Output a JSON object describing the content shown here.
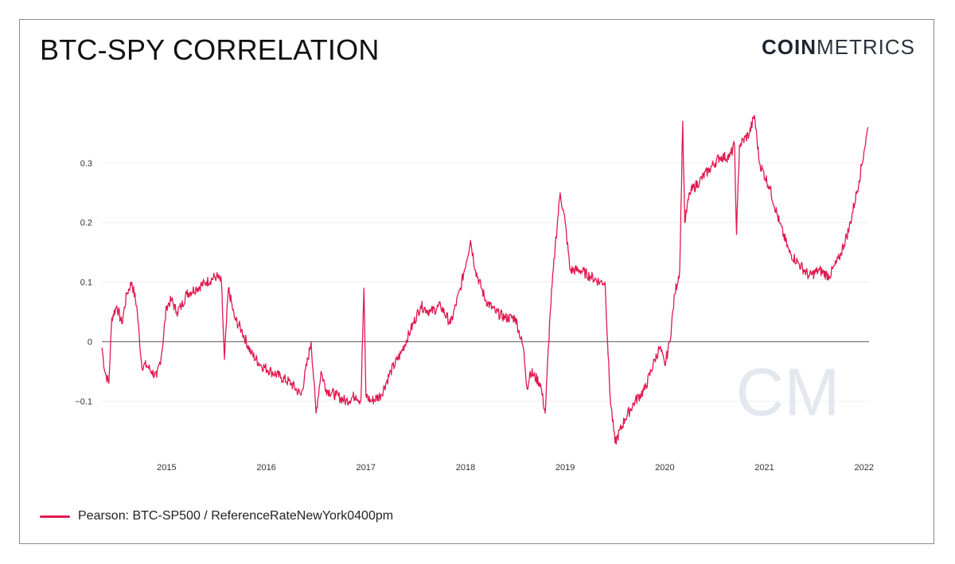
{
  "title": "BTC-SPY CORRELATION",
  "brand": {
    "bold": "COIN",
    "light": "METRICS"
  },
  "watermark": "CM",
  "colors": {
    "line": "#e0194f",
    "grid": "#eeeeee",
    "zero": "#777777",
    "watermark": "#e3e7ee"
  },
  "chart_data": {
    "type": "line",
    "title": "BTC-SPY CORRELATION",
    "xlabel": "",
    "ylabel": "",
    "xlim": [
      2014.35,
      2022.05
    ],
    "ylim": [
      -0.185,
      0.4
    ],
    "y_ticks": [
      -0.1,
      0,
      0.1,
      0.2,
      0.3
    ],
    "y_tick_labels": [
      "−0.1",
      "0",
      "0.1",
      "0.2",
      "0.3"
    ],
    "x_ticks": [
      2015,
      2016,
      2017,
      2018,
      2019,
      2020,
      2021,
      2022
    ],
    "x_tick_labels": [
      "2015",
      "2016",
      "2017",
      "2018",
      "2019",
      "2020",
      "2021",
      "2022"
    ],
    "grid": true,
    "legend": "bottom-left",
    "series": [
      {
        "name": "Pearson: BTC-SP500 / ReferenceRateNewYork0400pm",
        "x": [
          2014.35,
          2014.38,
          2014.42,
          2014.45,
          2014.5,
          2014.55,
          2014.6,
          2014.65,
          2014.7,
          2014.75,
          2014.8,
          2014.85,
          2014.9,
          2014.95,
          2015.0,
          2015.05,
          2015.1,
          2015.15,
          2015.2,
          2015.3,
          2015.4,
          2015.5,
          2015.55,
          2015.58,
          2015.62,
          2015.68,
          2015.75,
          2015.85,
          2015.95,
          2016.05,
          2016.15,
          2016.25,
          2016.35,
          2016.45,
          2016.5,
          2016.55,
          2016.6,
          2016.7,
          2016.8,
          2016.9,
          2016.95,
          2016.98,
          2017.0,
          2017.05,
          2017.15,
          2017.25,
          2017.35,
          2017.45,
          2017.55,
          2017.65,
          2017.75,
          2017.85,
          2017.95,
          2018.05,
          2018.1,
          2018.2,
          2018.3,
          2018.4,
          2018.5,
          2018.58,
          2018.62,
          2018.65,
          2018.75,
          2018.8,
          2018.85,
          2018.9,
          2018.95,
          2019.0,
          2019.05,
          2019.15,
          2019.25,
          2019.35,
          2019.4,
          2019.45,
          2019.5,
          2019.6,
          2019.7,
          2019.8,
          2019.9,
          2019.95,
          2020.0,
          2020.05,
          2020.1,
          2020.15,
          2020.18,
          2020.2,
          2020.25,
          2020.35,
          2020.45,
          2020.55,
          2020.65,
          2020.7,
          2020.72,
          2020.75,
          2020.85,
          2020.9,
          2020.95,
          2021.05,
          2021.15,
          2021.25,
          2021.35,
          2021.45,
          2021.55,
          2021.65,
          2021.75,
          2021.85,
          2021.95,
          2022.0,
          2022.04
        ],
        "values": [
          -0.01,
          -0.05,
          -0.07,
          0.04,
          0.06,
          0.03,
          0.08,
          0.1,
          0.06,
          -0.04,
          -0.04,
          -0.05,
          -0.06,
          -0.02,
          0.06,
          0.07,
          0.05,
          0.06,
          0.08,
          0.09,
          0.1,
          0.11,
          0.1,
          -0.03,
          0.09,
          0.04,
          0.02,
          -0.02,
          -0.04,
          -0.05,
          -0.06,
          -0.07,
          -0.09,
          0.0,
          -0.12,
          -0.05,
          -0.08,
          -0.09,
          -0.1,
          -0.09,
          -0.1,
          0.09,
          -0.09,
          -0.1,
          -0.09,
          -0.05,
          -0.02,
          0.02,
          0.06,
          0.05,
          0.06,
          0.03,
          0.09,
          0.17,
          0.12,
          0.07,
          0.05,
          0.04,
          0.04,
          -0.01,
          -0.08,
          -0.05,
          -0.07,
          -0.12,
          0.05,
          0.16,
          0.25,
          0.2,
          0.12,
          0.12,
          0.11,
          0.1,
          0.1,
          -0.09,
          -0.17,
          -0.13,
          -0.1,
          -0.08,
          -0.03,
          -0.01,
          -0.04,
          0.0,
          0.08,
          0.12,
          0.37,
          0.2,
          0.25,
          0.27,
          0.29,
          0.31,
          0.31,
          0.33,
          0.18,
          0.33,
          0.35,
          0.38,
          0.3,
          0.26,
          0.2,
          0.15,
          0.13,
          0.11,
          0.12,
          0.11,
          0.14,
          0.19,
          0.27,
          0.32,
          0.36
        ]
      }
    ]
  }
}
